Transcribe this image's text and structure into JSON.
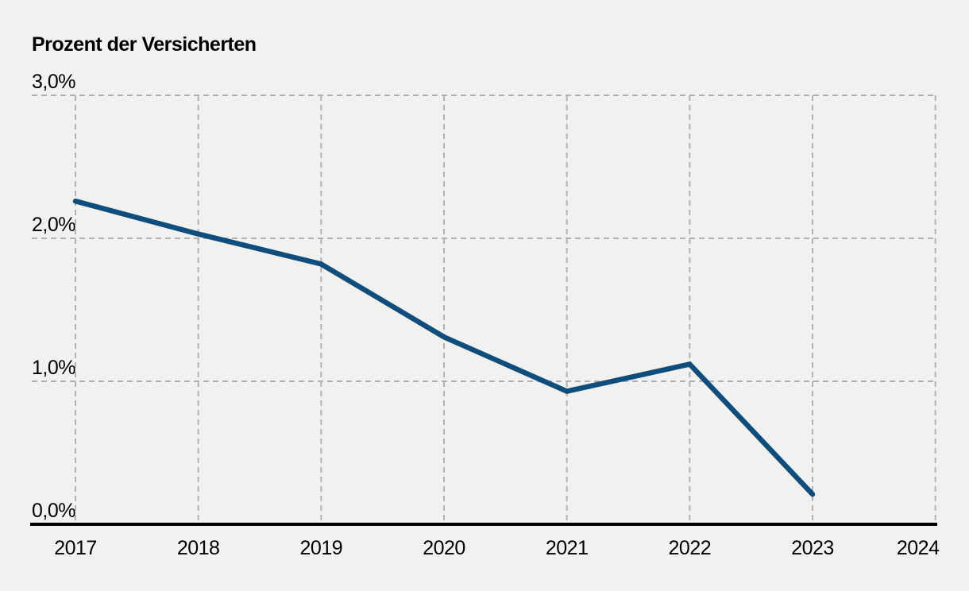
{
  "chart_data": {
    "type": "line",
    "title": "Prozent der Versicherten",
    "ylabel": "Prozent der Versicherten",
    "xlabel": "",
    "x": [
      2017,
      2018,
      2019,
      2020,
      2021,
      2022,
      2023
    ],
    "series": [
      {
        "name": "Prozent der Versicherten",
        "values": [
          2.26,
          2.03,
          1.82,
          1.31,
          0.93,
          1.12,
          0.21
        ]
      }
    ],
    "x_ticks": [
      "2017",
      "2018",
      "2019",
      "2020",
      "2021",
      "2022",
      "2023",
      "2024"
    ],
    "x_tick_values": [
      2017,
      2018,
      2019,
      2020,
      2021,
      2022,
      2023,
      2024
    ],
    "y_ticks": [
      "3,0%",
      "2,0%",
      "1,0%",
      "0,0%"
    ],
    "y_tick_values": [
      3.0,
      2.0,
      1.0,
      0.0
    ],
    "ylim": [
      0.0,
      3.0
    ],
    "xlim": [
      2017,
      2024
    ],
    "grid": "dashed",
    "legend_position": "none"
  },
  "colors": {
    "background": "#f1f1f0",
    "line": "#0f4e7c",
    "grid": "#b1b1b1",
    "axis": "#000000",
    "text": "#000000"
  }
}
